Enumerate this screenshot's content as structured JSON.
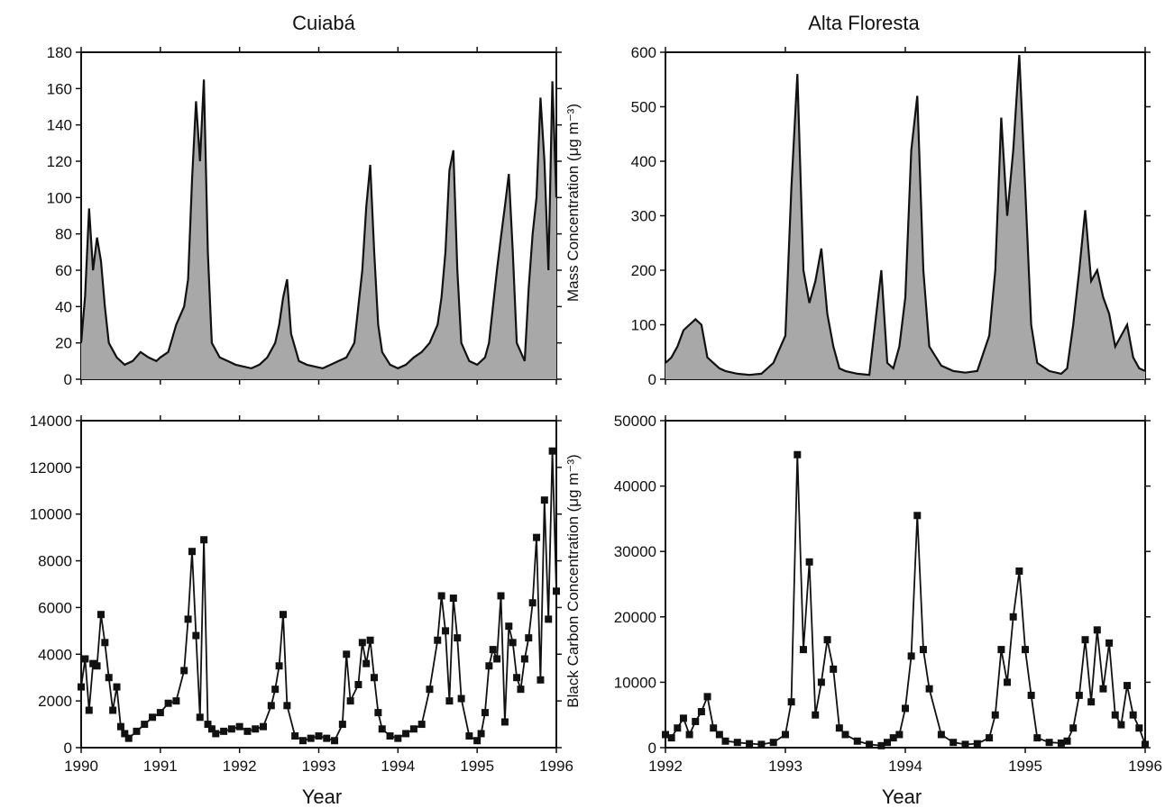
{
  "colors": {
    "ink": "#111111",
    "fill": "#a8a8a8",
    "background": "#ffffff"
  },
  "titles": {
    "left": "Cuiabá",
    "right": "Alta Floresta"
  },
  "y_labels": {
    "mass": "Mass Concentration (μg m⁻³)",
    "black_carbon": "Black Carbon Concentration (μg m⁻³)"
  },
  "x_label": "Year",
  "chart_data": [
    {
      "id": "cuiaba-mass",
      "type": "area",
      "title": "Cuiabá",
      "ylabel": "Mass Concentration (μg m⁻³)",
      "xlabel": "",
      "xlim": [
        1990,
        1996
      ],
      "ylim": [
        0,
        180
      ],
      "x_ticks": [
        1990,
        1991,
        1992,
        1993,
        1994,
        1995,
        1996
      ],
      "y_ticks": [
        "0",
        "20",
        "40",
        "60",
        "80",
        "100",
        "120",
        "140",
        "160",
        "180"
      ],
      "grid": false,
      "x": [
        1990.0,
        1990.05,
        1990.1,
        1990.15,
        1990.2,
        1990.25,
        1990.3,
        1990.35,
        1990.45,
        1990.55,
        1990.65,
        1990.75,
        1990.85,
        1990.95,
        1991.0,
        1991.1,
        1991.2,
        1991.3,
        1991.35,
        1991.4,
        1991.45,
        1991.5,
        1991.55,
        1991.6,
        1991.65,
        1991.75,
        1991.85,
        1991.95,
        1992.05,
        1992.15,
        1992.25,
        1992.35,
        1992.45,
        1992.5,
        1992.55,
        1992.6,
        1992.65,
        1992.75,
        1992.85,
        1992.95,
        1993.05,
        1993.15,
        1993.25,
        1993.35,
        1993.45,
        1993.5,
        1993.55,
        1993.6,
        1993.65,
        1993.7,
        1993.75,
        1993.8,
        1993.9,
        1994.0,
        1994.1,
        1994.2,
        1994.3,
        1994.4,
        1994.5,
        1994.55,
        1994.6,
        1994.65,
        1994.7,
        1994.75,
        1994.8,
        1994.9,
        1995.0,
        1995.05,
        1995.1,
        1995.15,
        1995.2,
        1995.25,
        1995.3,
        1995.35,
        1995.4,
        1995.45,
        1995.5,
        1995.6,
        1995.65,
        1995.7,
        1995.75,
        1995.8,
        1995.85,
        1995.9,
        1995.95,
        1996.0
      ],
      "y": [
        20,
        46,
        94,
        60,
        78,
        65,
        40,
        20,
        12,
        8,
        10,
        15,
        12,
        10,
        12,
        15,
        30,
        40,
        55,
        110,
        153,
        120,
        165,
        70,
        20,
        12,
        10,
        8,
        7,
        6,
        8,
        12,
        20,
        30,
        45,
        55,
        25,
        10,
        8,
        7,
        6,
        8,
        10,
        12,
        20,
        40,
        60,
        95,
        118,
        70,
        30,
        15,
        8,
        6,
        8,
        12,
        15,
        20,
        30,
        45,
        70,
        115,
        126,
        60,
        20,
        10,
        8,
        10,
        12,
        20,
        40,
        60,
        78,
        95,
        113,
        70,
        20,
        10,
        50,
        80,
        100,
        155,
        120,
        60,
        164,
        100
      ]
    },
    {
      "id": "alta-floresta-mass",
      "type": "area",
      "title": "Alta Floresta",
      "ylabel": "",
      "xlabel": "",
      "xlim": [
        1992,
        1996
      ],
      "ylim": [
        0,
        600
      ],
      "x_ticks": [
        1992,
        1993,
        1994,
        1995,
        1996
      ],
      "y_ticks": [
        "0",
        "100",
        "200",
        "300",
        "400",
        "500",
        "600"
      ],
      "grid": false,
      "x": [
        1992.0,
        1992.05,
        1992.1,
        1992.15,
        1992.2,
        1992.25,
        1992.3,
        1992.35,
        1992.4,
        1992.45,
        1992.5,
        1992.6,
        1992.7,
        1992.8,
        1992.9,
        1993.0,
        1993.05,
        1993.1,
        1993.15,
        1993.2,
        1993.25,
        1993.3,
        1993.35,
        1993.4,
        1993.45,
        1993.5,
        1993.6,
        1993.7,
        1993.8,
        1993.85,
        1993.9,
        1993.95,
        1994.0,
        1994.05,
        1994.1,
        1994.15,
        1994.2,
        1994.3,
        1994.4,
        1994.5,
        1994.6,
        1994.7,
        1994.75,
        1994.8,
        1994.85,
        1994.9,
        1994.95,
        1995.0,
        1995.05,
        1995.1,
        1995.2,
        1995.3,
        1995.35,
        1995.4,
        1995.45,
        1995.5,
        1995.55,
        1995.6,
        1995.65,
        1995.7,
        1995.75,
        1995.8,
        1995.85,
        1995.9,
        1995.95,
        1996.0
      ],
      "y": [
        30,
        40,
        60,
        90,
        100,
        110,
        100,
        40,
        30,
        20,
        15,
        10,
        8,
        10,
        30,
        80,
        350,
        560,
        200,
        140,
        180,
        240,
        120,
        60,
        20,
        15,
        10,
        8,
        200,
        30,
        20,
        60,
        150,
        420,
        520,
        200,
        60,
        25,
        15,
        12,
        15,
        80,
        200,
        480,
        300,
        420,
        595,
        350,
        100,
        30,
        15,
        10,
        20,
        100,
        200,
        310,
        180,
        200,
        150,
        120,
        60,
        80,
        100,
        40,
        20,
        15
      ]
    },
    {
      "id": "cuiaba-black-carbon",
      "type": "line",
      "title": "",
      "ylabel": "Black Carbon Concentration (μg m⁻³)",
      "xlabel": "Year",
      "xlim": [
        1990,
        1996
      ],
      "ylim": [
        0,
        14000
      ],
      "x_ticks": [
        1990,
        1991,
        1992,
        1993,
        1994,
        1995,
        1996
      ],
      "y_ticks": [
        "0",
        "2000",
        "4000",
        "6000",
        "8000",
        "10000",
        "12000",
        "14000"
      ],
      "grid": false,
      "x": [
        1990.0,
        1990.05,
        1990.1,
        1990.15,
        1990.2,
        1990.25,
        1990.3,
        1990.35,
        1990.4,
        1990.45,
        1990.5,
        1990.55,
        1990.6,
        1990.7,
        1990.8,
        1990.9,
        1991.0,
        1991.1,
        1991.2,
        1991.3,
        1991.35,
        1991.4,
        1991.45,
        1991.5,
        1991.55,
        1991.6,
        1991.65,
        1991.7,
        1991.8,
        1991.9,
        1992.0,
        1992.1,
        1992.2,
        1992.3,
        1992.4,
        1992.45,
        1992.5,
        1992.55,
        1992.6,
        1992.7,
        1992.8,
        1992.9,
        1993.0,
        1993.1,
        1993.2,
        1993.3,
        1993.35,
        1993.4,
        1993.5,
        1993.55,
        1993.6,
        1993.65,
        1993.7,
        1993.75,
        1993.8,
        1993.9,
        1994.0,
        1994.1,
        1994.2,
        1994.3,
        1994.4,
        1994.5,
        1994.55,
        1994.6,
        1994.65,
        1994.7,
        1994.75,
        1994.8,
        1994.9,
        1995.0,
        1995.05,
        1995.1,
        1995.15,
        1995.2,
        1995.25,
        1995.3,
        1995.35,
        1995.4,
        1995.45,
        1995.5,
        1995.55,
        1995.6,
        1995.65,
        1995.7,
        1995.75,
        1995.8,
        1995.85,
        1995.9,
        1995.95,
        1996.0
      ],
      "y": [
        2600,
        3800,
        1600,
        3600,
        3500,
        5700,
        4500,
        3000,
        1600,
        2600,
        900,
        600,
        400,
        700,
        1000,
        1300,
        1500,
        1900,
        2000,
        3300,
        5500,
        8400,
        4800,
        1300,
        8900,
        1000,
        800,
        600,
        700,
        800,
        900,
        700,
        800,
        900,
        1800,
        2500,
        3500,
        5700,
        1800,
        500,
        300,
        400,
        500,
        400,
        300,
        1000,
        4000,
        2000,
        2700,
        4500,
        3600,
        4600,
        3000,
        1500,
        800,
        500,
        400,
        600,
        800,
        1000,
        2500,
        4600,
        6500,
        5000,
        2000,
        6400,
        4700,
        2100,
        500,
        300,
        600,
        1500,
        3500,
        4200,
        3800,
        6500,
        1100,
        5200,
        4500,
        3000,
        2500,
        3800,
        4700,
        6200,
        9000,
        2900,
        10600,
        5500,
        12700,
        6700
      ]
    },
    {
      "id": "alta-floresta-black-carbon",
      "type": "line",
      "title": "",
      "ylabel": "",
      "xlabel": "Year",
      "xlim": [
        1992,
        1996
      ],
      "ylim": [
        0,
        50000
      ],
      "x_ticks": [
        1992,
        1993,
        1994,
        1995,
        1996
      ],
      "y_ticks": [
        "0",
        "10000",
        "20000",
        "30000",
        "40000",
        "50000"
      ],
      "grid": false,
      "x": [
        1992.0,
        1992.05,
        1992.1,
        1992.15,
        1992.2,
        1992.25,
        1992.3,
        1992.35,
        1992.4,
        1992.45,
        1992.5,
        1992.6,
        1992.7,
        1992.8,
        1992.9,
        1993.0,
        1993.05,
        1993.1,
        1993.15,
        1993.2,
        1993.25,
        1993.3,
        1993.35,
        1993.4,
        1993.45,
        1993.5,
        1993.6,
        1993.7,
        1993.8,
        1993.85,
        1993.9,
        1993.95,
        1994.0,
        1994.05,
        1994.1,
        1994.15,
        1994.2,
        1994.3,
        1994.4,
        1994.5,
        1994.6,
        1994.7,
        1994.75,
        1994.8,
        1994.85,
        1994.9,
        1994.95,
        1995.0,
        1995.05,
        1995.1,
        1995.2,
        1995.3,
        1995.35,
        1995.4,
        1995.45,
        1995.5,
        1995.55,
        1995.6,
        1995.65,
        1995.7,
        1995.75,
        1995.8,
        1995.85,
        1995.9,
        1995.95,
        1996.0
      ],
      "y": [
        2000,
        1500,
        3000,
        4500,
        2000,
        4000,
        5500,
        7800,
        3000,
        2000,
        1000,
        800,
        600,
        500,
        800,
        2000,
        7000,
        44800,
        15000,
        28400,
        5000,
        10000,
        16500,
        12000,
        3000,
        2000,
        1000,
        500,
        300,
        800,
        1500,
        2000,
        6000,
        14000,
        35500,
        15000,
        9000,
        2000,
        800,
        500,
        600,
        1500,
        5000,
        15000,
        10000,
        20000,
        27000,
        15000,
        8000,
        1500,
        800,
        700,
        1000,
        3000,
        8000,
        16500,
        7000,
        18000,
        9000,
        16000,
        5000,
        3500,
        9500,
        5000,
        3000,
        500
      ]
    }
  ]
}
